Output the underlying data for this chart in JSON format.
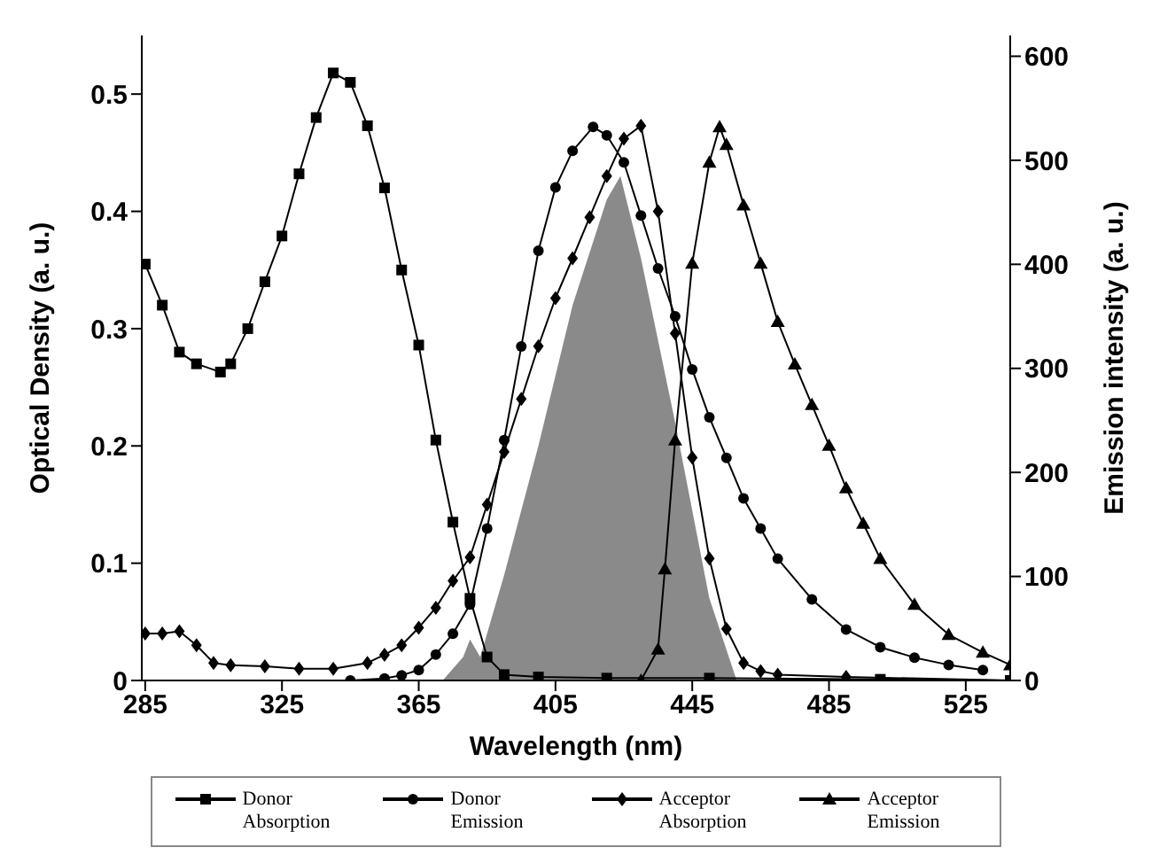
{
  "chart_data": {
    "type": "line",
    "xlabel": "Wavelength (nm)",
    "ylabel": "Optical Density (a. u.)",
    "y2label": "Emission intensity (a. u.)",
    "xlim": [
      284,
      538
    ],
    "xticks": [
      285,
      325,
      365,
      405,
      445,
      485,
      525
    ],
    "ylim": [
      0,
      0.55
    ],
    "yticks": [
      0,
      0.1,
      0.2,
      0.3,
      0.4,
      0.5
    ],
    "y2lim": [
      0,
      620
    ],
    "y2ticks": [
      0,
      100,
      200,
      300,
      400,
      500,
      600
    ],
    "grid": false,
    "legend": "bottom",
    "series": [
      {
        "type": "area",
        "color": "#8a8a8a",
        "axis": "y",
        "x": [
          372,
          378,
          380,
          383,
          385,
          390,
          400,
          410,
          420,
          424,
          430,
          440,
          450,
          458
        ],
        "values": [
          0,
          0.02,
          0.035,
          0.02,
          0.04,
          0.09,
          0.2,
          0.32,
          0.41,
          0.43,
          0.36,
          0.22,
          0.07,
          0
        ]
      },
      {
        "name": "Donor Absorption",
        "color": "#000000",
        "axis": "y",
        "marker": "square",
        "x": [
          285,
          290,
          295,
          300,
          307,
          310,
          315,
          320,
          325,
          330,
          335,
          340,
          345,
          350,
          355,
          360,
          365,
          370,
          375,
          380,
          385,
          390,
          400,
          420,
          450,
          500,
          538
        ],
        "values": [
          0.355,
          0.32,
          0.28,
          0.27,
          0.263,
          0.27,
          0.3,
          0.34,
          0.379,
          0.432,
          0.48,
          0.518,
          0.51,
          0.473,
          0.42,
          0.35,
          0.286,
          0.205,
          0.135,
          0.07,
          0.02,
          0.005,
          0.003,
          0.002,
          0.002,
          0.001,
          0
        ]
      },
      {
        "name": "Donor Emission",
        "color": "#000000",
        "axis": "y2",
        "marker": "circle",
        "x": [
          345,
          355,
          360,
          365,
          370,
          375,
          380,
          385,
          390,
          395,
          400,
          405,
          410,
          416,
          420,
          425,
          430,
          435,
          440,
          445,
          450,
          455,
          460,
          465,
          470,
          480,
          490,
          500,
          510,
          520,
          530
        ],
        "values": [
          0,
          2,
          5,
          10,
          25,
          45,
          73,
          146,
          231,
          321,
          413,
          474,
          509,
          532,
          524,
          498,
          447,
          396,
          350,
          299,
          253,
          214,
          175,
          146,
          117,
          78,
          49,
          32,
          22,
          15,
          10
        ]
      },
      {
        "name": "Acceptor Absorption",
        "color": "#000000",
        "axis": "y",
        "marker": "diamond",
        "x": [
          285,
          290,
          295,
          300,
          305,
          310,
          320,
          330,
          340,
          350,
          355,
          360,
          365,
          370,
          375,
          380,
          385,
          390,
          395,
          400,
          405,
          410,
          415,
          420,
          425,
          430,
          435,
          440,
          445,
          450,
          455,
          460,
          465,
          470,
          490,
          538
        ],
        "values": [
          0.04,
          0.04,
          0.042,
          0.03,
          0.015,
          0.013,
          0.012,
          0.01,
          0.01,
          0.015,
          0.022,
          0.03,
          0.045,
          0.062,
          0.085,
          0.105,
          0.15,
          0.195,
          0.24,
          0.285,
          0.326,
          0.36,
          0.395,
          0.43,
          0.462,
          0.473,
          0.4,
          0.296,
          0.19,
          0.104,
          0.044,
          0.015,
          0.008,
          0.005,
          0.003,
          0
        ]
      },
      {
        "name": "Acceptor Emission",
        "color": "#000000",
        "axis": "y2",
        "marker": "triangle",
        "x": [
          430,
          435,
          437,
          440,
          445,
          450,
          453,
          455,
          460,
          465,
          470,
          475,
          480,
          485,
          490,
          495,
          500,
          510,
          520,
          530,
          538
        ],
        "values": [
          0,
          30,
          107,
          231,
          401,
          498,
          532,
          515,
          457,
          401,
          345,
          304,
          265,
          226,
          185,
          151,
          117,
          73,
          44,
          27,
          15
        ]
      }
    ]
  }
}
